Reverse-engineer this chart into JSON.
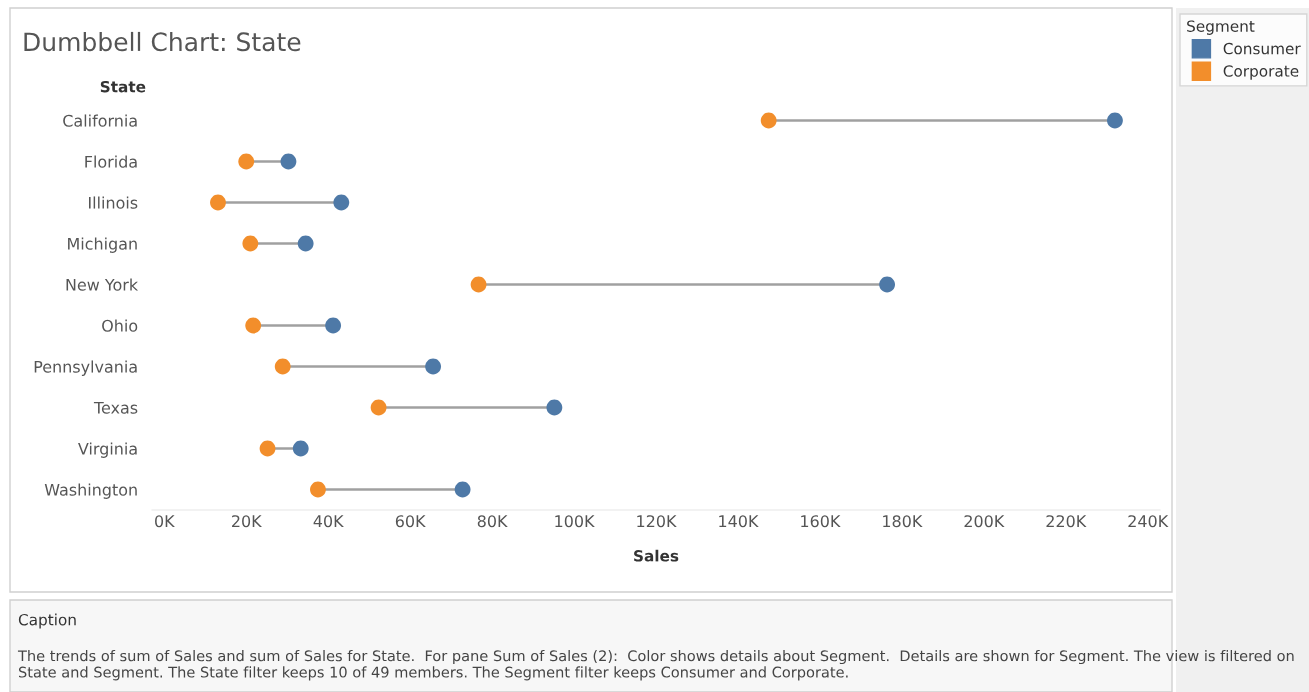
{
  "chart_data": {
    "type": "scatter",
    "orientation": "horizontal",
    "title": "Dumbbell Chart: State",
    "ylabel": "State",
    "xlabel": "Sales",
    "legend_title": "Segment",
    "legend": "top right",
    "marker": "circle",
    "grid": false,
    "categories": [
      "California",
      "Florida",
      "Illinois",
      "Michigan",
      "New York",
      "Ohio",
      "Pennsylvania",
      "Texas",
      "Virginia",
      "Washington"
    ],
    "series": [
      {
        "name": "Consumer",
        "color": "#4e79a7",
        "values": [
          232000,
          30300,
          43200,
          34500,
          176400,
          41200,
          65600,
          95200,
          33300,
          72800
        ]
      },
      {
        "name": "Corporate",
        "color": "#f28e2b",
        "values": [
          147500,
          20000,
          13100,
          21000,
          76700,
          21700,
          28900,
          52300,
          25200,
          37500
        ]
      }
    ],
    "xlim": [
      -3000,
      243000
    ],
    "xticks": [
      {
        "value": 0,
        "label": "0K"
      },
      {
        "value": 20000,
        "label": "20K"
      },
      {
        "value": 40000,
        "label": "40K"
      },
      {
        "value": 60000,
        "label": "60K"
      },
      {
        "value": 80000,
        "label": "80K"
      },
      {
        "value": 100000,
        "label": "100K"
      },
      {
        "value": 120000,
        "label": "120K"
      },
      {
        "value": 140000,
        "label": "140K"
      },
      {
        "value": 160000,
        "label": "160K"
      },
      {
        "value": 180000,
        "label": "180K"
      },
      {
        "value": 200000,
        "label": "200K"
      },
      {
        "value": 220000,
        "label": "220K"
      },
      {
        "value": 240000,
        "label": "240K"
      }
    ],
    "annotations": [
      "Caption",
      "The trends of sum of Sales and sum of Sales for State.  For pane Sum of Sales (2):  Color shows details about Segment.  Details are shown for Segment. The view is filtered on State and Segment. The State filter keeps 10 of 49 members. The Segment filter keeps Consumer and Corporate."
    ]
  }
}
